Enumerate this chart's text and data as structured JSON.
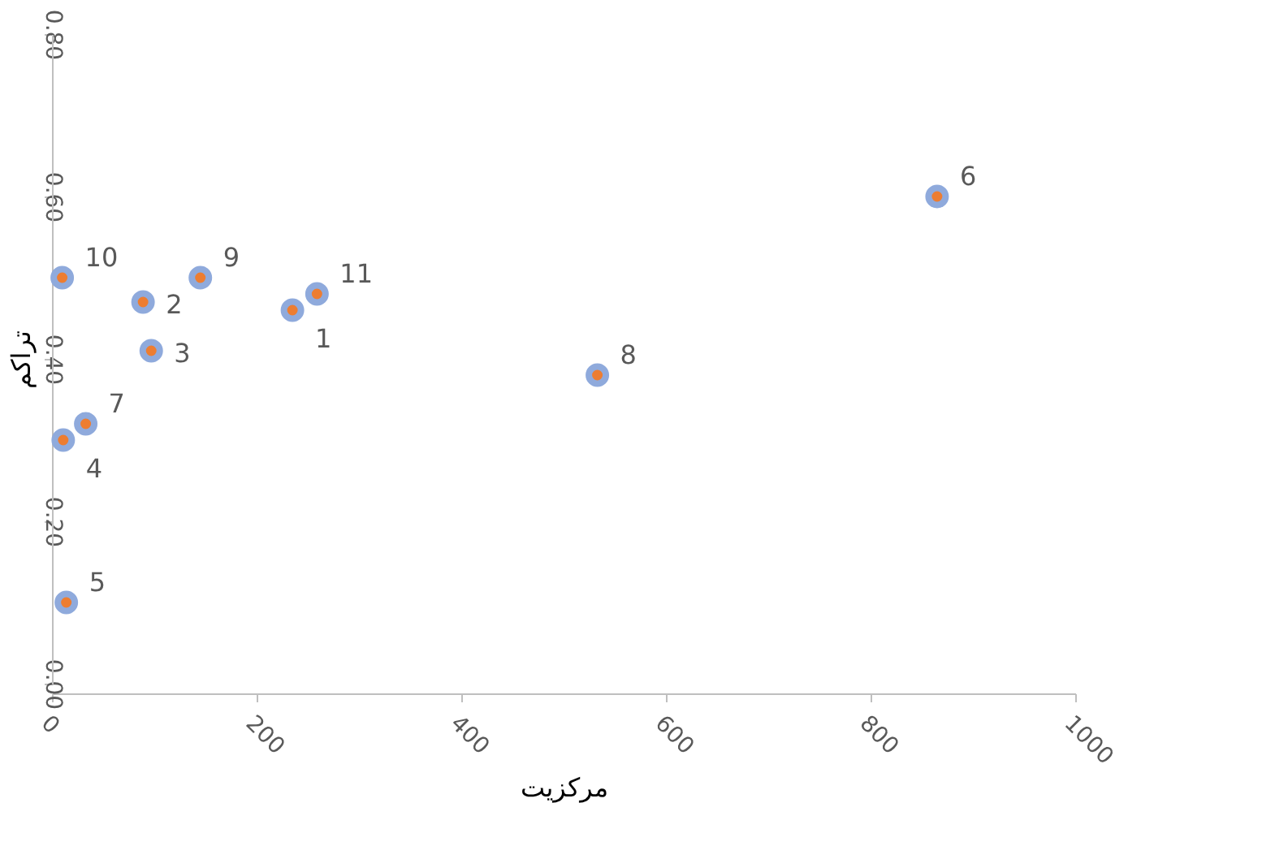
{
  "chart_data": {
    "type": "scatter",
    "xlabel": "مرکزیت",
    "ylabel": "تراکم",
    "x": [
      235,
      89,
      97,
      11,
      14,
      865,
      33,
      533,
      145,
      10,
      259
    ],
    "series": [
      {
        "color": "#ed7d31",
        "values": [
          0.46,
          0.47,
          0.41,
          0.3,
          0.1,
          0.6,
          0.32,
          0.38,
          0.5,
          0.5,
          0.48
        ]
      }
    ],
    "annotations": [
      {
        "text": "1",
        "x": 235,
        "y": 0.46
      },
      {
        "text": "2",
        "x": 89,
        "y": 0.47
      },
      {
        "text": "3",
        "x": 97,
        "y": 0.41
      },
      {
        "text": "4",
        "x": 11,
        "y": 0.3
      },
      {
        "text": "5",
        "x": 14,
        "y": 0.1
      },
      {
        "text": "6",
        "x": 865,
        "y": 0.6
      },
      {
        "text": "7",
        "x": 33,
        "y": 0.32
      },
      {
        "text": "8",
        "x": 533,
        "y": 0.38
      },
      {
        "text": "9",
        "x": 145,
        "y": 0.5
      },
      {
        "text": "10",
        "x": 10,
        "y": 0.5
      },
      {
        "text": "11",
        "x": 259,
        "y": 0.48
      }
    ],
    "xlim": [
      0,
      1000
    ],
    "xticks": [
      0,
      200,
      400,
      600,
      800,
      1000
    ],
    "ylim": [
      0,
      0.8
    ],
    "yticks": [
      {
        "value": 0,
        "label": "0.00"
      },
      {
        "value": 0.2,
        "label": "0.20"
      },
      {
        "value": 0.4,
        "label": "0.40"
      },
      {
        "value": 0.6,
        "label": "0.60"
      },
      {
        "value": 0.8,
        "label": "0.80"
      }
    ],
    "grid": false,
    "marker": "circle"
  }
}
